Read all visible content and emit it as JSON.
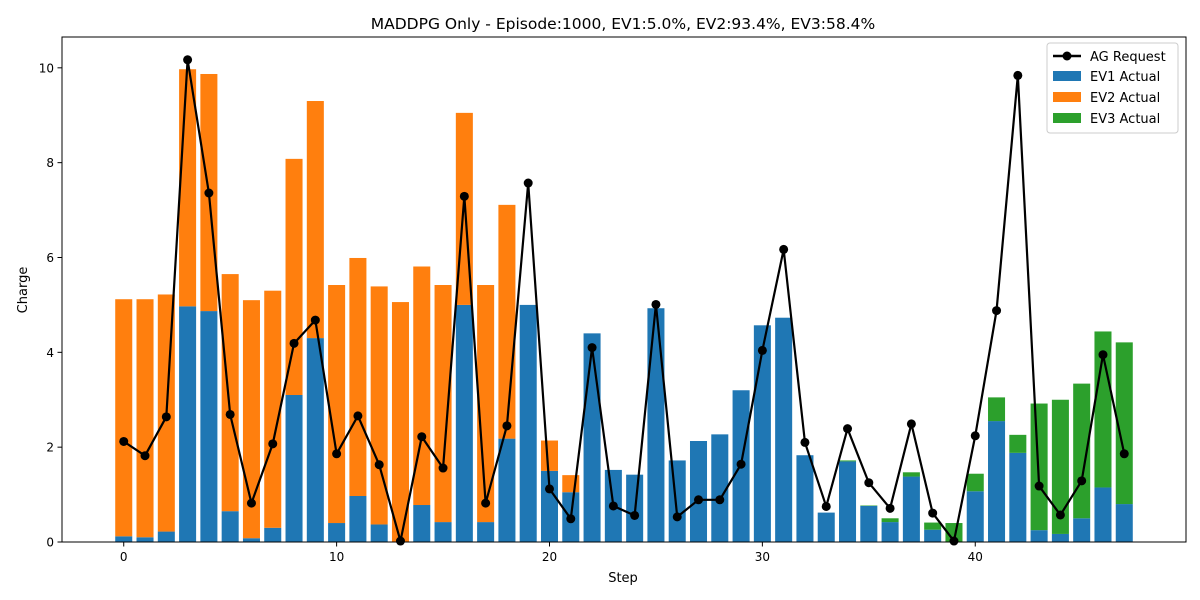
{
  "chart_data": {
    "type": "bar",
    "stacked": true,
    "title": "MADDPG Only - Episode:1000, EV1:5.0%, EV2:93.4%, EV3:58.4%",
    "xlabel": "Step",
    "ylabel": "Charge",
    "xlim": [
      -2.9,
      49.9
    ],
    "ylim": [
      0,
      10.65
    ],
    "xticks": [
      0,
      10,
      20,
      30,
      40
    ],
    "yticks": [
      0,
      2,
      4,
      6,
      8,
      10
    ],
    "grid": false,
    "legend_position": "top-right",
    "x": [
      0,
      1,
      2,
      3,
      4,
      5,
      6,
      7,
      8,
      9,
      10,
      11,
      12,
      13,
      14,
      15,
      16,
      17,
      18,
      19,
      20,
      21,
      22,
      23,
      24,
      25,
      26,
      27,
      28,
      29,
      30,
      31,
      32,
      33,
      34,
      35,
      36,
      37,
      38,
      39,
      40,
      41,
      42,
      43,
      44,
      45,
      46,
      47
    ],
    "bar_series": [
      {
        "name": "EV1 Actual",
        "color": "#1f77b4",
        "values": [
          0.12,
          0.1,
          0.22,
          4.97,
          4.87,
          0.65,
          0.08,
          0.3,
          3.1,
          4.3,
          0.4,
          0.97,
          0.37,
          0.0,
          0.78,
          0.42,
          5.0,
          0.42,
          2.18,
          5.0,
          1.5,
          1.05,
          4.4,
          1.52,
          1.42,
          4.93,
          1.72,
          2.13,
          2.27,
          3.2,
          4.57,
          4.73,
          1.83,
          0.62,
          1.7,
          0.76,
          0.42,
          1.38,
          0.26,
          0.0,
          1.07,
          2.55,
          1.88,
          0.25,
          0.17,
          0.5,
          1.15,
          0.8
        ]
      },
      {
        "name": "EV2 Actual",
        "color": "#ff7f0e",
        "values": [
          5.0,
          5.02,
          5.0,
          5.0,
          5.0,
          5.0,
          5.02,
          5.0,
          4.98,
          5.0,
          5.02,
          5.02,
          5.02,
          5.06,
          5.03,
          5.0,
          4.05,
          5.0,
          4.93,
          0.0,
          0.64,
          0.36,
          0,
          0,
          0,
          0,
          0,
          0,
          0,
          0,
          0,
          0,
          0,
          0,
          0,
          0,
          0,
          0,
          0,
          0,
          0,
          0,
          0,
          0,
          0,
          0,
          0,
          0
        ]
      },
      {
        "name": "EV3 Actual",
        "color": "#2ca02c",
        "values": [
          0,
          0,
          0,
          0,
          0,
          0,
          0,
          0,
          0,
          0,
          0,
          0,
          0,
          0,
          0,
          0,
          0,
          0,
          0,
          0,
          0,
          0,
          0,
          0,
          0,
          0,
          0,
          0,
          0,
          0,
          0,
          0,
          0,
          0,
          0.02,
          0.01,
          0.08,
          0.09,
          0.15,
          0.4,
          0.37,
          0.5,
          0.38,
          2.67,
          2.83,
          2.84,
          3.29,
          3.41
        ]
      }
    ],
    "line_series": {
      "name": "AG Request",
      "color": "#000000",
      "values": [
        2.12,
        1.82,
        2.64,
        10.17,
        7.36,
        2.69,
        0.82,
        2.07,
        4.19,
        4.68,
        1.86,
        2.66,
        1.63,
        0.02,
        2.22,
        1.56,
        7.29,
        0.82,
        2.45,
        7.57,
        1.12,
        0.49,
        4.1,
        0.76,
        0.56,
        5.01,
        0.53,
        0.89,
        0.89,
        1.64,
        4.04,
        6.17,
        2.1,
        0.75,
        2.39,
        1.25,
        0.71,
        2.49,
        0.61,
        0.02,
        2.24,
        4.88,
        9.84,
        1.18,
        0.57,
        1.29,
        3.95,
        1.86
      ]
    },
    "legend": [
      "AG Request",
      "EV1 Actual",
      "EV2 Actual",
      "EV3 Actual"
    ]
  }
}
